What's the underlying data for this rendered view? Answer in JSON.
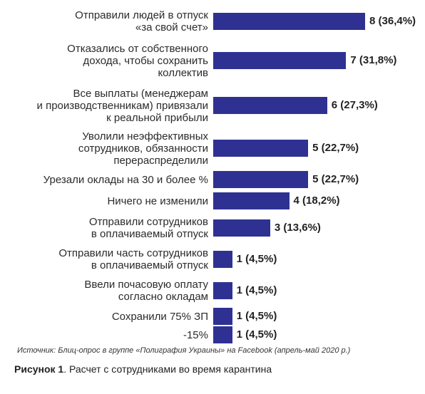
{
  "chart_data": {
    "type": "bar",
    "orientation": "horizontal",
    "categories": [
      "Отправили людей в отпуск\n«за свой счет»",
      "Отказались от собственного\nдохода, чтобы сохранить\nколлектив",
      "Все выплаты (менеджерам\nи производственникам) привязали\nк реальной прибыли",
      "Уволили неэффективных\nсотрудников, обязанности\nперераспределили",
      "Урезали оклады на 30 и более %",
      "Ничего не изменили",
      "Отправили сотрудников\nв оплачиваемый отпуск",
      "Отправили часть сотрудников\nв оплачиваемый отпуск",
      "Ввели почасовую оплату\nсогласно окладам",
      "Сохранили 75% ЗП",
      "-15%"
    ],
    "values": [
      8,
      7,
      6,
      5,
      5,
      4,
      3,
      1,
      1,
      1,
      1
    ],
    "value_labels": [
      "8 (36,4%)",
      "7 (31,8%)",
      "6 (27,3%)",
      "5 (22,7%)",
      "5 (22,7%)",
      "4 (18,2%)",
      "3 (13,6%)",
      "1 (4,5%)",
      "1 (4,5%)",
      "1 (4,5%)",
      "1 (4,5%)"
    ],
    "xlim": [
      0,
      8
    ],
    "color": "#2e3192",
    "grid": false
  },
  "source": "Источник: Блиц-опрос в группе «Полиграфия Украины» на Facebook (апрель-май 2020 р.)",
  "caption": {
    "label": "Рисунок 1",
    "text": ". Расчет с сотрудниками во время карантина"
  }
}
